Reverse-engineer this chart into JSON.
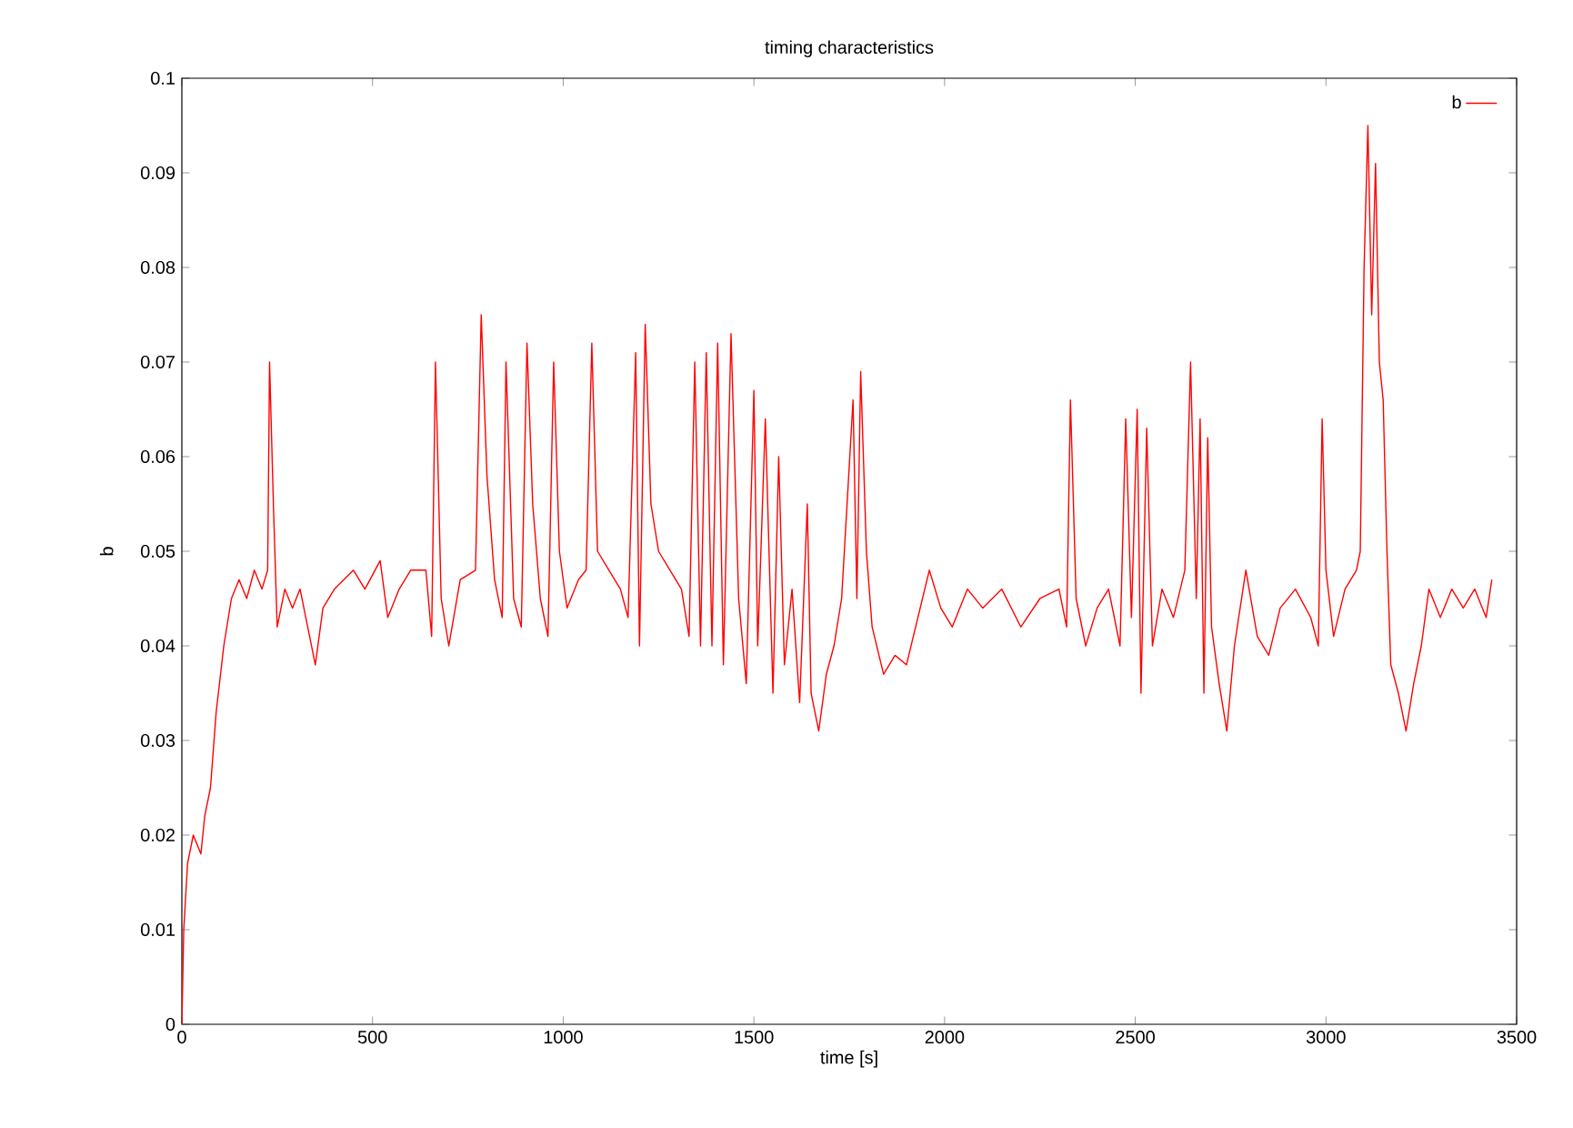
{
  "chart_data": {
    "type": "line",
    "title": "timing characteristics",
    "xlabel": "time [s]",
    "ylabel": "b",
    "xlim": [
      0,
      3500
    ],
    "ylim": [
      0,
      0.1
    ],
    "xticks": [
      0,
      500,
      1000,
      1500,
      2000,
      2500,
      3000,
      3500
    ],
    "yticks": [
      0,
      0.01,
      0.02,
      0.03,
      0.04,
      0.05,
      0.06,
      0.07,
      0.08,
      0.09,
      0.1
    ],
    "grid": false,
    "legend": "top right",
    "line_style": "solid",
    "series": [
      {
        "name": "b",
        "color": "#ff0000",
        "x": [
          0,
          5,
          15,
          30,
          50,
          60,
          75,
          90,
          110,
          130,
          150,
          170,
          190,
          210,
          225,
          230,
          240,
          250,
          270,
          290,
          310,
          330,
          350,
          370,
          400,
          450,
          480,
          520,
          540,
          570,
          600,
          640,
          655,
          665,
          680,
          700,
          730,
          770,
          785,
          800,
          820,
          840,
          850,
          870,
          890,
          905,
          920,
          940,
          960,
          975,
          990,
          1010,
          1040,
          1060,
          1075,
          1090,
          1120,
          1150,
          1170,
          1190,
          1200,
          1215,
          1230,
          1250,
          1280,
          1310,
          1330,
          1345,
          1360,
          1375,
          1390,
          1405,
          1420,
          1440,
          1460,
          1480,
          1500,
          1510,
          1530,
          1550,
          1565,
          1580,
          1600,
          1620,
          1640,
          1650,
          1670,
          1690,
          1710,
          1730,
          1760,
          1770,
          1780,
          1795,
          1810,
          1840,
          1870,
          1900,
          1930,
          1960,
          1990,
          2020,
          2060,
          2100,
          2150,
          2200,
          2250,
          2300,
          2320,
          2330,
          2345,
          2370,
          2400,
          2430,
          2460,
          2475,
          2490,
          2505,
          2515,
          2530,
          2545,
          2570,
          2600,
          2630,
          2645,
          2660,
          2670,
          2680,
          2690,
          2700,
          2720,
          2740,
          2760,
          2790,
          2820,
          2850,
          2880,
          2920,
          2960,
          2980,
          2990,
          3000,
          3020,
          3050,
          3080,
          3090,
          3100,
          3110,
          3120,
          3130,
          3140,
          3150,
          3160,
          3170,
          3190,
          3210,
          3230,
          3250,
          3270,
          3300,
          3330,
          3360,
          3390,
          3420,
          3435
        ],
        "values": [
          0,
          0.01,
          0.017,
          0.02,
          0.018,
          0.022,
          0.025,
          0.033,
          0.04,
          0.045,
          0.047,
          0.045,
          0.048,
          0.046,
          0.048,
          0.07,
          0.055,
          0.042,
          0.046,
          0.044,
          0.046,
          0.042,
          0.038,
          0.044,
          0.046,
          0.048,
          0.046,
          0.049,
          0.043,
          0.046,
          0.048,
          0.048,
          0.041,
          0.07,
          0.045,
          0.04,
          0.047,
          0.048,
          0.075,
          0.058,
          0.047,
          0.043,
          0.07,
          0.045,
          0.042,
          0.072,
          0.055,
          0.045,
          0.041,
          0.07,
          0.05,
          0.044,
          0.047,
          0.048,
          0.072,
          0.05,
          0.048,
          0.046,
          0.043,
          0.071,
          0.04,
          0.074,
          0.055,
          0.05,
          0.048,
          0.046,
          0.041,
          0.07,
          0.04,
          0.071,
          0.04,
          0.072,
          0.038,
          0.073,
          0.045,
          0.036,
          0.067,
          0.04,
          0.064,
          0.035,
          0.06,
          0.038,
          0.046,
          0.034,
          0.055,
          0.035,
          0.031,
          0.037,
          0.04,
          0.045,
          0.066,
          0.045,
          0.069,
          0.05,
          0.042,
          0.037,
          0.039,
          0.038,
          0.043,
          0.048,
          0.044,
          0.042,
          0.046,
          0.044,
          0.046,
          0.042,
          0.045,
          0.046,
          0.042,
          0.066,
          0.045,
          0.04,
          0.044,
          0.046,
          0.04,
          0.064,
          0.043,
          0.065,
          0.035,
          0.063,
          0.04,
          0.046,
          0.043,
          0.048,
          0.07,
          0.045,
          0.064,
          0.035,
          0.062,
          0.042,
          0.036,
          0.031,
          0.04,
          0.048,
          0.041,
          0.039,
          0.044,
          0.046,
          0.043,
          0.04,
          0.064,
          0.048,
          0.041,
          0.046,
          0.048,
          0.05,
          0.08,
          0.095,
          0.075,
          0.091,
          0.07,
          0.066,
          0.05,
          0.038,
          0.035,
          0.031,
          0.036,
          0.04,
          0.046,
          0.043,
          0.046,
          0.044,
          0.046,
          0.043,
          0.047
        ]
      }
    ]
  }
}
